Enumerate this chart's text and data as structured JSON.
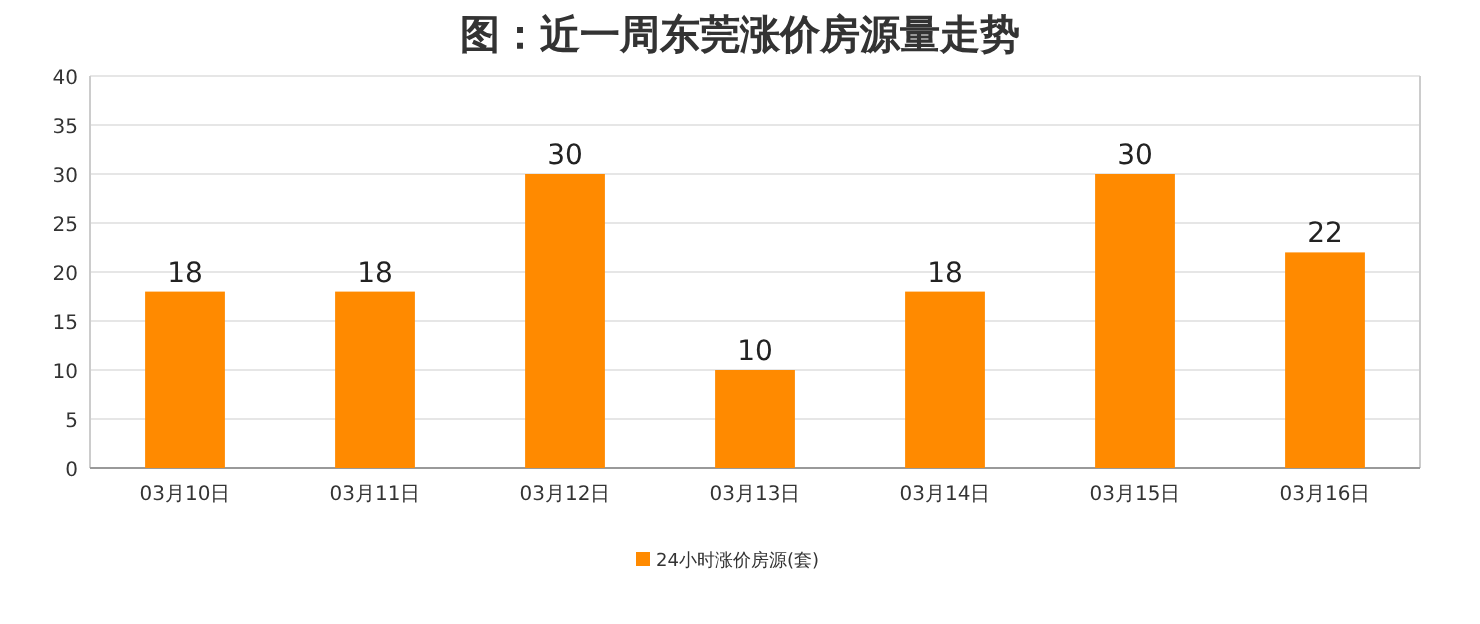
{
  "chart_data": {
    "type": "bar",
    "title": "图：近一周东莞涨价房源量走势",
    "categories": [
      "03月10日",
      "03月11日",
      "03月12日",
      "03月13日",
      "03月14日",
      "03月15日",
      "03月16日"
    ],
    "series": [
      {
        "name": "24小时涨价房源(套)",
        "color": "#ff8a00",
        "values": [
          18,
          18,
          30,
          10,
          18,
          30,
          22
        ]
      }
    ],
    "ylim": [
      0,
      40
    ],
    "yticks": [
      0,
      5,
      10,
      15,
      20,
      25,
      30,
      35,
      40
    ],
    "grid": "y",
    "legend": "bottom",
    "data_labels": true
  }
}
